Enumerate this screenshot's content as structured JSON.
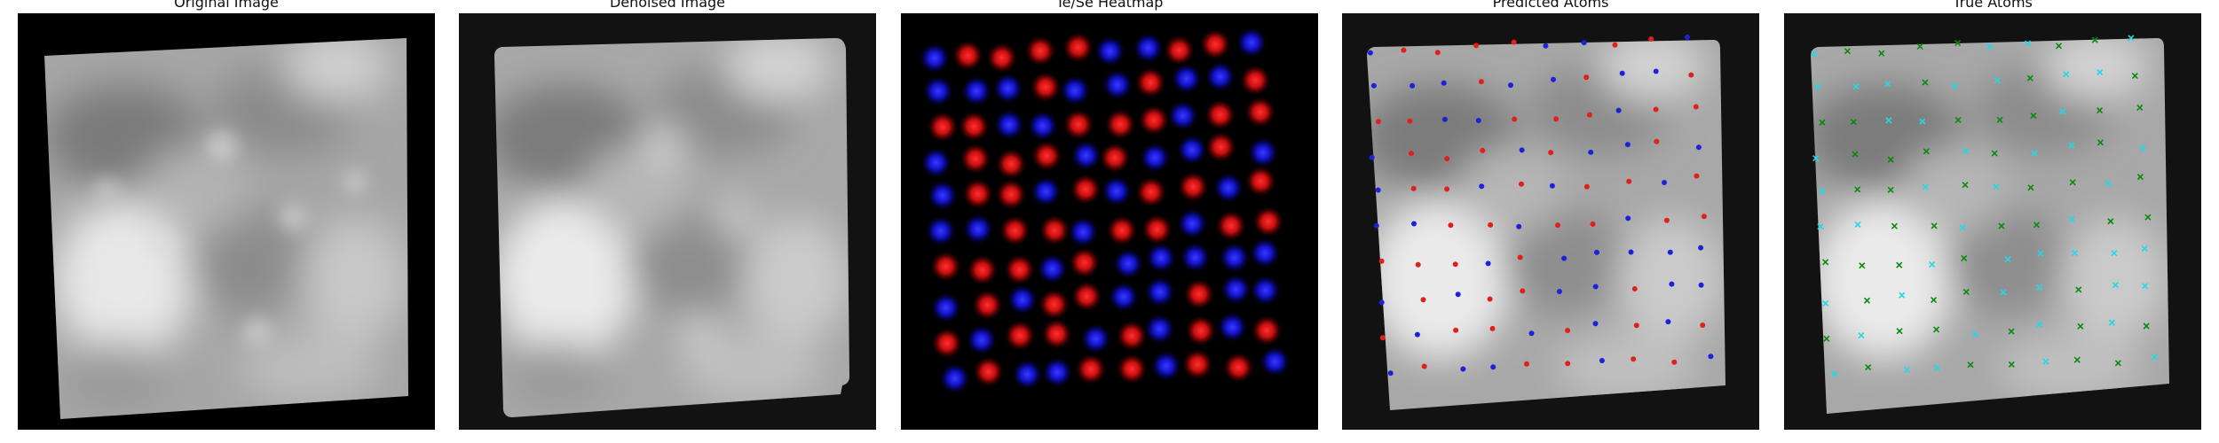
{
  "panels": [
    {
      "id": "original",
      "title": "Original Image"
    },
    {
      "id": "denoised",
      "title": "Denoised Image"
    },
    {
      "id": "heatmap",
      "title": "Te/Se Heatmap"
    },
    {
      "id": "predicted",
      "title": "Predicted Atoms"
    },
    {
      "id": "true",
      "title": "True Atoms"
    }
  ],
  "colors": {
    "background": "#000000",
    "te": "#ff2a2a",
    "se": "#2a2aff",
    "pred_te": "#e0201c",
    "pred_se": "#1c22d8",
    "true_te": "#0a8a0a",
    "true_se": "#22d8e8"
  },
  "marker_styles": {
    "predicted": "dot",
    "true": "x"
  }
}
